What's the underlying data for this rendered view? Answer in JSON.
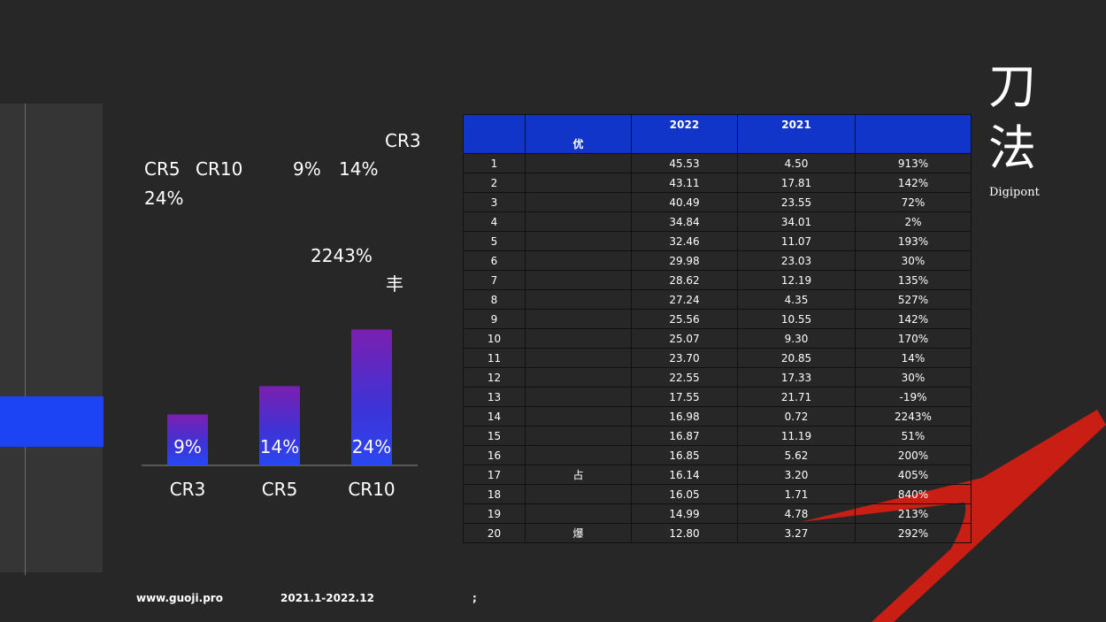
{
  "left_text": {
    "line1_a": "CR3",
    "line2_a": "CR5",
    "line2_b": "CR10",
    "line2_c": "9%",
    "line2_d": "14%",
    "line3": "24%",
    "highlight": "2243%",
    "glyph": "丰"
  },
  "chart_data": {
    "type": "bar",
    "categories": [
      "CR3",
      "CR5",
      "CR10"
    ],
    "values": [
      9,
      14,
      24
    ],
    "value_labels": [
      "9%",
      "14%",
      "24%"
    ],
    "ylim": [
      0,
      30
    ],
    "bar_gradient": [
      "#7a1fb0",
      "#2b47f0"
    ]
  },
  "table": {
    "headers": [
      "",
      "优",
      "2022",
      "2021",
      ""
    ],
    "rows": [
      [
        "1",
        "",
        "45.53",
        "4.50",
        "913%"
      ],
      [
        "2",
        "",
        "43.11",
        "17.81",
        "142%"
      ],
      [
        "3",
        "",
        "40.49",
        "23.55",
        "72%"
      ],
      [
        "4",
        "",
        "34.84",
        "34.01",
        "2%"
      ],
      [
        "5",
        "",
        "32.46",
        "11.07",
        "193%"
      ],
      [
        "6",
        "",
        "29.98",
        "23.03",
        "30%"
      ],
      [
        "7",
        "",
        "28.62",
        "12.19",
        "135%"
      ],
      [
        "8",
        "",
        "27.24",
        "4.35",
        "527%"
      ],
      [
        "9",
        "",
        "25.56",
        "10.55",
        "142%"
      ],
      [
        "10",
        "",
        "25.07",
        "9.30",
        "170%"
      ],
      [
        "11",
        "",
        "23.70",
        "20.85",
        "14%"
      ],
      [
        "12",
        "",
        "22.55",
        "17.33",
        "30%"
      ],
      [
        "13",
        "",
        "17.55",
        "21.71",
        "-19%"
      ],
      [
        "14",
        "",
        "16.98",
        "0.72",
        "2243%"
      ],
      [
        "15",
        "",
        "16.87",
        "11.19",
        "51%"
      ],
      [
        "16",
        "",
        "16.85",
        "5.62",
        "200%"
      ],
      [
        "17",
        "占",
        "16.14",
        "3.20",
        "405%"
      ],
      [
        "18",
        "",
        "16.05",
        "1.71",
        "840%"
      ],
      [
        "19",
        "",
        "14.99",
        "4.78",
        "213%"
      ],
      [
        "20",
        "爆",
        "12.80",
        "3.27",
        "292%"
      ]
    ]
  },
  "logo": {
    "char1": "刀",
    "char2": "法",
    "sub": "Digipont"
  },
  "footer": {
    "site": "www.guoji.pro",
    "period": "2021.1-2022.12",
    "punct": ";"
  },
  "colors": {
    "background": "#272727",
    "accent_blue": "#1c44f5",
    "header_blue": "#1235c9",
    "red": "#c81e14"
  }
}
